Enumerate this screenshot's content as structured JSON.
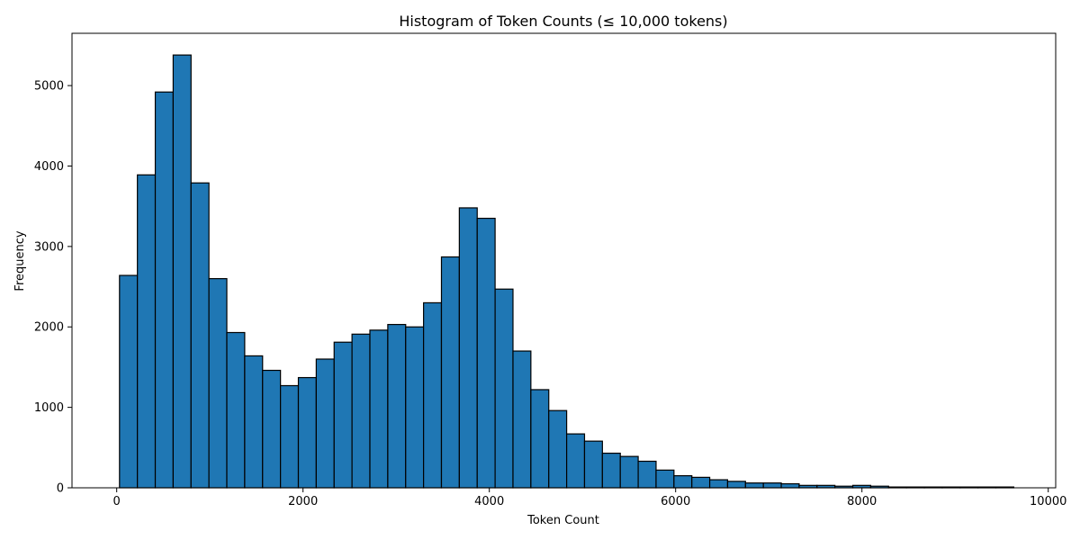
{
  "chart_data": {
    "type": "bar",
    "title": "Histogram of Token Counts (≤ 10,000 tokens)",
    "xlabel": "Token Count",
    "ylabel": "Frequency",
    "xlim": [
      -480,
      10080
    ],
    "ylim": [
      0,
      5650
    ],
    "xticks": [
      0,
      2000,
      4000,
      6000,
      8000,
      10000
    ],
    "yticks": [
      0,
      1000,
      2000,
      3000,
      4000,
      5000
    ],
    "grid": false,
    "bar_color": "#1f77b4",
    "edge_color": "#000000",
    "bin_start": 30,
    "bin_width": 192,
    "values": [
      2640,
      3890,
      4920,
      5380,
      3790,
      2600,
      1930,
      1640,
      1460,
      1270,
      1370,
      1600,
      1810,
      1910,
      1960,
      2030,
      2000,
      2300,
      2870,
      3480,
      3350,
      2470,
      1700,
      1220,
      960,
      670,
      580,
      430,
      390,
      330,
      220,
      150,
      130,
      100,
      80,
      60,
      60,
      50,
      30,
      30,
      20,
      30,
      20,
      10,
      10,
      10,
      10,
      10,
      10,
      10
    ]
  }
}
